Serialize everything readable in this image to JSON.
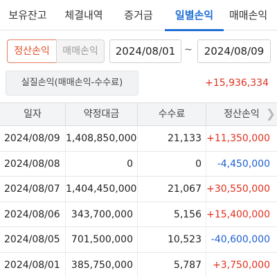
{
  "tabs": [
    {
      "label": "보유잔고",
      "active": false
    },
    {
      "label": "체결내역",
      "active": false
    },
    {
      "label": "증거금",
      "active": false
    },
    {
      "label": "일별손익",
      "active": true
    },
    {
      "label": "매매손익",
      "active": false
    }
  ],
  "filters": {
    "mode_selected": "정산손익",
    "mode_other": "매매손익",
    "date_from": "2024/08/01",
    "separator": "~",
    "date_to": "2024/08/09"
  },
  "summary": {
    "label": "실질손익(매매손익-수수료)",
    "value": "+15,936,334"
  },
  "table": {
    "headers": [
      "일자",
      "약정대금",
      "수수료",
      "정산손익"
    ],
    "rows": [
      {
        "date": "2024/08/09",
        "amount": "1,408,850,000",
        "fee": "21,133",
        "pnl": "+11,350,000",
        "sign": "pos"
      },
      {
        "date": "2024/08/08",
        "amount": "0",
        "fee": "0",
        "pnl": "-4,450,000",
        "sign": "neg"
      },
      {
        "date": "2024/08/07",
        "amount": "1,404,450,000",
        "fee": "21,067",
        "pnl": "+30,550,000",
        "sign": "pos"
      },
      {
        "date": "2024/08/06",
        "amount": "343,700,000",
        "fee": "5,156",
        "pnl": "+15,400,000",
        "sign": "pos"
      },
      {
        "date": "2024/08/05",
        "amount": "701,500,000",
        "fee": "10,523",
        "pnl": "-40,600,000",
        "sign": "neg"
      },
      {
        "date": "2024/08/01",
        "amount": "385,750,000",
        "fee": "5,787",
        "pnl": "+3,750,000",
        "sign": "pos"
      }
    ]
  },
  "colors": {
    "accent": "#1f6fd6",
    "positive": "#e0301e",
    "negative": "#1f5fcf",
    "selected_filter": "#e24b25"
  },
  "icons": {
    "scroll_right": "chevron-right-icon"
  }
}
